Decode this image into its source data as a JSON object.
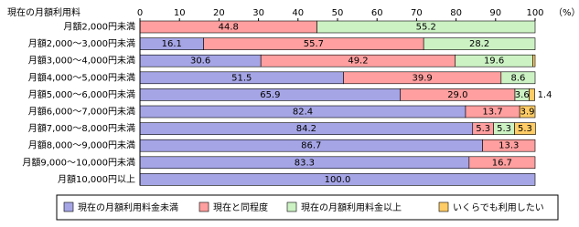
{
  "chart_data": {
    "type": "stacked-bar-horizontal",
    "y_header": "現在の月額利用料",
    "x_unit": "（%）",
    "categories": [
      "月額2,000円未満",
      "月額2,000～3,000円未満",
      "月額3,000～4,000円未満",
      "月額4,000～5,000円未満",
      "月額5,000～6,000円未満",
      "月額6,000～7,000円未満",
      "月額7,000～8,000円未満",
      "月額8,000～9,000円未満",
      "月額9,000～10,000円未満",
      "月額10,000円以上"
    ],
    "series": [
      {
        "name": "現在の月額利用料金未満",
        "color": "#a5a5e6",
        "values": [
          0,
          16.1,
          30.6,
          51.5,
          65.9,
          82.4,
          84.2,
          86.7,
          83.3,
          100
        ],
        "value_labels": [
          null,
          "16.1",
          "30.6",
          "51.5",
          "65.9",
          "82.4",
          "84.2",
          "86.7",
          "83.3",
          "100.0"
        ]
      },
      {
        "name": "現在と同程度",
        "color": "#ff9f9f",
        "values": [
          44.8,
          55.7,
          49.2,
          39.9,
          29,
          13.7,
          5.3,
          13.3,
          16.7,
          0
        ],
        "value_labels": [
          "44.8",
          "55.7",
          "49.2",
          "39.9",
          "29.0",
          "13.7",
          "5.3",
          "13.3",
          "16.7",
          null
        ]
      },
      {
        "name": "現在の月額利用料金以上",
        "color": "#ccf2c4",
        "values": [
          55.2,
          28.2,
          19.6,
          8.6,
          3.6,
          0,
          5.3,
          0,
          0,
          0
        ],
        "value_labels": [
          "55.2",
          "28.2",
          "19.6",
          "8.6",
          "3.6",
          null,
          "5.3",
          null,
          null,
          null
        ]
      },
      {
        "name": "いくらでも利用したい",
        "color": "#ffcc66",
        "values": [
          0,
          0,
          0.6,
          0,
          1.4,
          3.9,
          5.3,
          0,
          0,
          0
        ],
        "value_labels": [
          null,
          null,
          null,
          null,
          "1.4",
          "3.9",
          "5.3",
          null,
          null,
          null
        ]
      }
    ],
    "xlim": [
      0,
      100
    ],
    "xticks": [
      0,
      10,
      20,
      30,
      40,
      50,
      60,
      70,
      80,
      90,
      100
    ]
  }
}
